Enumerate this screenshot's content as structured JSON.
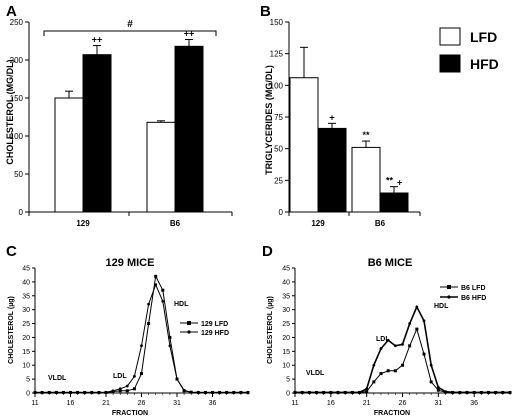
{
  "panels": {
    "A": {
      "letter": "A"
    },
    "B": {
      "letter": "B"
    },
    "C": {
      "letter": "C"
    },
    "D": {
      "letter": "D"
    }
  },
  "legend_AB": {
    "items": [
      {
        "label": "LFD",
        "fill": "#ffffff"
      },
      {
        "label": "HFD",
        "fill": "#000000"
      }
    ]
  },
  "chart_data": [
    {
      "type": "bar",
      "panel": "A",
      "ylabel": "CHOLESTEROL (MG/DL)",
      "xlabel": "",
      "categories": [
        "129",
        "B6"
      ],
      "ylim": [
        0,
        250
      ],
      "yticks": [
        0,
        50,
        100,
        150,
        200,
        250
      ],
      "series": [
        {
          "name": "LFD",
          "color": "#ffffff",
          "values": [
            150,
            118
          ],
          "errors": [
            9,
            2
          ],
          "marks": [
            "",
            ""
          ]
        },
        {
          "name": "HFD",
          "color": "#000000",
          "values": [
            207,
            218
          ],
          "errors": [
            12,
            9
          ],
          "marks": [
            "++",
            "++"
          ]
        }
      ],
      "bracket_label": "#",
      "grid": false
    },
    {
      "type": "bar",
      "panel": "B",
      "ylabel": "TRIGLYCERIDES (MG/DL)",
      "xlabel": "",
      "categories": [
        "129",
        "B6"
      ],
      "ylim": [
        0,
        150
      ],
      "yticks": [
        0,
        25,
        50,
        75,
        100,
        125,
        150
      ],
      "series": [
        {
          "name": "LFD",
          "color": "#ffffff",
          "values": [
            106,
            51
          ],
          "errors": [
            24,
            5
          ],
          "marks": [
            "",
            "**"
          ]
        },
        {
          "name": "HFD",
          "color": "#000000",
          "values": [
            66,
            15
          ],
          "errors": [
            4,
            5
          ],
          "marks": [
            "+",
            "**,+"
          ]
        }
      ],
      "grid": false
    },
    {
      "type": "line",
      "panel": "C",
      "title": "129 MICE",
      "xlabel": "FRACTION",
      "ylabel": "CHOLESTEROL (µg)",
      "xlim": [
        11,
        41
      ],
      "ylim": [
        0,
        45
      ],
      "xticks": [
        11,
        16,
        21,
        26,
        31,
        36
      ],
      "yticks": [
        0,
        5,
        10,
        15,
        20,
        25,
        30,
        35,
        40,
        45
      ],
      "x": [
        11,
        12,
        13,
        14,
        15,
        16,
        17,
        18,
        19,
        20,
        21,
        22,
        23,
        24,
        25,
        26,
        27,
        28,
        29,
        30,
        31,
        32,
        33,
        34,
        35,
        36,
        37,
        38,
        39,
        40,
        41
      ],
      "series": [
        {
          "name": "129 LFD",
          "marker": "square",
          "values": [
            0.2,
            0.2,
            0.2,
            0.2,
            0.2,
            0.2,
            0.2,
            0.2,
            0.2,
            0.2,
            0.2,
            0.5,
            0.8,
            0.8,
            1.5,
            7,
            25,
            42,
            37,
            20,
            5,
            0.8,
            0.3,
            0.2,
            0.2,
            0.2,
            0.2,
            0.2,
            0.2,
            0.2,
            0.2
          ]
        },
        {
          "name": "129 HFD",
          "marker": "dot",
          "values": [
            0.2,
            0.2,
            0.2,
            0.2,
            0.2,
            0.2,
            0.2,
            0.2,
            0.2,
            0.2,
            0.2,
            0.8,
            1.5,
            2.5,
            6,
            17,
            32,
            39,
            33,
            17,
            5,
            1,
            0.3,
            0.2,
            0.2,
            0.2,
            0.2,
            0.2,
            0.2,
            0.2,
            0.2
          ]
        }
      ],
      "annotations": [
        "VLDL",
        "LDL",
        "HDL"
      ],
      "legend": "right",
      "grid": false
    },
    {
      "type": "line",
      "panel": "D",
      "title": "B6 MICE",
      "xlabel": "FRACTION",
      "ylabel": "CHOLESTEROL (µg)",
      "xlim": [
        11,
        41
      ],
      "ylim": [
        0,
        45
      ],
      "xticks": [
        11,
        16,
        21,
        26,
        31,
        36
      ],
      "yticks": [
        0,
        5,
        10,
        15,
        20,
        25,
        30,
        35,
        40,
        45
      ],
      "x": [
        11,
        12,
        13,
        14,
        15,
        16,
        17,
        18,
        19,
        20,
        21,
        22,
        23,
        24,
        25,
        26,
        27,
        28,
        29,
        30,
        31,
        32,
        33,
        34,
        35,
        36,
        37,
        38,
        39,
        40,
        41
      ],
      "series": [
        {
          "name": "B6 LFD",
          "marker": "square",
          "values": [
            0.2,
            0.2,
            0.2,
            0.2,
            0.2,
            0.2,
            0.2,
            0.2,
            0.2,
            0.2,
            0.5,
            4,
            7,
            8,
            8,
            10,
            17,
            23,
            14,
            4,
            1,
            0.3,
            0.2,
            0.2,
            0.2,
            0.2,
            0.2,
            0.2,
            0.2,
            0.2,
            0.2
          ]
        },
        {
          "name": "B6 HFD",
          "marker": "dot",
          "values": [
            0.2,
            0.2,
            0.2,
            0.2,
            0.2,
            0.2,
            0.2,
            0.2,
            0.2,
            0.2,
            1.5,
            10,
            16,
            19,
            17,
            17.5,
            25,
            31,
            26,
            10,
            2,
            0.5,
            0.2,
            0.2,
            0.2,
            0.2,
            0.2,
            0.2,
            0.2,
            0.2,
            0.2
          ]
        }
      ],
      "annotations": [
        "VLDL",
        "LDL",
        "HDL"
      ],
      "legend": "right",
      "grid": false
    }
  ]
}
